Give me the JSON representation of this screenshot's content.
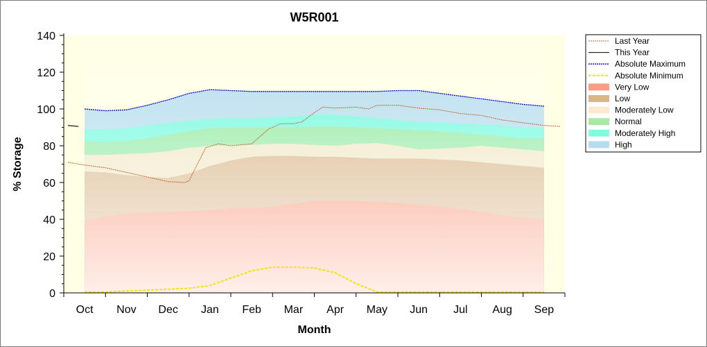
{
  "chart_data": {
    "type": "area",
    "title": "W5R001",
    "xlabel": "Month",
    "ylabel": "% Storage",
    "ylim": [
      0,
      140
    ],
    "yticks": [
      0,
      20,
      40,
      60,
      80,
      100,
      120,
      140
    ],
    "categories": [
      "Oct",
      "Nov",
      "Dec",
      "Jan",
      "Feb",
      "Mar",
      "Apr",
      "May",
      "Jun",
      "Jul",
      "Aug",
      "Sep"
    ],
    "x": [
      0,
      0.5,
      1,
      1.5,
      2,
      2.5,
      3,
      3.5,
      4,
      4.5,
      5,
      5.5,
      6,
      6.5,
      7,
      7.5,
      8,
      8.5,
      9,
      9.5,
      10,
      10.5,
      11
    ],
    "bands": [
      {
        "name": "Very Low",
        "color": "#ff8c6e",
        "values": [
          39,
          41.5,
          43,
          43.5,
          44,
          44.5,
          45,
          46,
          46,
          47,
          48.5,
          50,
          50,
          50,
          49.5,
          49,
          48,
          47,
          45.5,
          44,
          42,
          41,
          40
        ]
      },
      {
        "name": "Low",
        "color": "#d2a878",
        "values": [
          66,
          65.5,
          64,
          63,
          62.5,
          65,
          69,
          72,
          74,
          74.5,
          74.5,
          74,
          74,
          73.5,
          73,
          73,
          73,
          72.5,
          72,
          71,
          70,
          69,
          68
        ]
      },
      {
        "name": "Moderately Low",
        "color": "#ffe6c8",
        "values": [
          75,
          75,
          75.5,
          76,
          77,
          79,
          80,
          80.5,
          80.5,
          81,
          81,
          80.5,
          80,
          81,
          81.5,
          80,
          78,
          78.5,
          79,
          80,
          79,
          78,
          77
        ]
      },
      {
        "name": "Normal",
        "color": "#96e696",
        "values": [
          82.5,
          82,
          82.5,
          84,
          86,
          88,
          89.5,
          90,
          90,
          90,
          90,
          90.5,
          90.5,
          90,
          89.5,
          89,
          88.5,
          88,
          87,
          86,
          85,
          84,
          84
        ]
      },
      {
        "name": "Moderately High",
        "color": "#66ffd9",
        "values": [
          89,
          89,
          89.5,
          91,
          92.5,
          93.5,
          94.5,
          95,
          95,
          95.5,
          96,
          97,
          97,
          96,
          95,
          94,
          93,
          93,
          92,
          91.5,
          91,
          90,
          90
        ]
      },
      {
        "name": "High",
        "color": "#a9d6ee",
        "values": [
          100,
          99,
          99.5,
          102,
          105,
          108.5,
          110.5,
          110,
          109.5,
          109.5,
          109.5,
          109.5,
          109.5,
          109.5,
          109.5,
          110,
          110,
          108.5,
          107,
          105.5,
          104,
          102.5,
          101.5
        ]
      }
    ],
    "series": [
      {
        "name": "Last Year",
        "color": "#c0642c",
        "x": [
          -0.4,
          0,
          0.5,
          1,
          1.5,
          2,
          2.4,
          2.5,
          2.7,
          2.9,
          3.2,
          3.5,
          4,
          4.4,
          4.7,
          5,
          5.2,
          5.5,
          5.7,
          6,
          6.5,
          6.8,
          7,
          7.5,
          8,
          8.5,
          9,
          9.5,
          10,
          10.5,
          11,
          11.4
        ],
        "values": [
          71,
          69.5,
          68,
          65.5,
          63,
          60.5,
          60,
          61,
          70,
          79,
          81,
          80,
          81,
          89,
          92,
          92,
          93,
          98,
          101,
          100.5,
          101,
          100,
          102,
          102,
          100.5,
          99.5,
          97.5,
          96.5,
          94,
          92.5,
          91,
          90.5
        ]
      },
      {
        "name": "This Year",
        "color": "#000000",
        "x": [
          -0.4,
          -0.15
        ],
        "values": [
          91,
          90.5
        ]
      },
      {
        "name": "Absolute Maximum",
        "color": "#0000cc",
        "values": [
          100,
          99,
          99.5,
          102,
          105,
          108.5,
          110.5,
          110,
          109.5,
          109.5,
          109.5,
          109.5,
          109.5,
          109.5,
          109.5,
          110,
          110,
          108.5,
          107,
          105.5,
          104,
          102.5,
          101.5
        ]
      },
      {
        "name": "Absolute Minimum",
        "color": "#f2e600",
        "values": [
          0.5,
          0.5,
          1,
          1.5,
          2,
          2.5,
          4,
          8,
          12,
          14,
          14,
          13.5,
          11,
          5,
          0.5,
          0.5,
          0.5,
          0.5,
          0.5,
          0.5,
          0.5,
          0.5,
          0.5
        ]
      }
    ],
    "legend": {
      "placement": "right",
      "entries": [
        "Last Year",
        "This Year",
        "Absolute Maximum",
        "Absolute Minimum",
        "Very Low",
        "Low",
        "Moderately Low",
        "Normal",
        "Moderately High",
        "High"
      ]
    },
    "grid": false,
    "plot_background": "#ffffe6"
  }
}
